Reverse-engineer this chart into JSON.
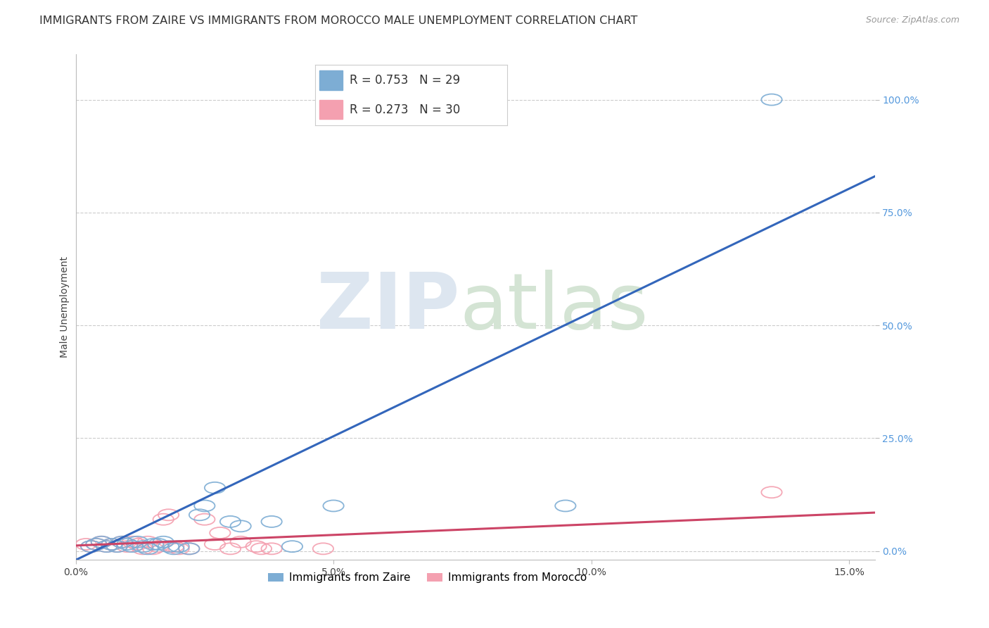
{
  "title": "IMMIGRANTS FROM ZAIRE VS IMMIGRANTS FROM MOROCCO MALE UNEMPLOYMENT CORRELATION CHART",
  "source": "Source: ZipAtlas.com",
  "ylabel": "Male Unemployment",
  "xlim": [
    0.0,
    0.155
  ],
  "ylim": [
    -0.02,
    1.1
  ],
  "yticks": [
    0.0,
    0.25,
    0.5,
    0.75,
    1.0
  ],
  "ytick_labels": [
    "0.0%",
    "25.0%",
    "50.0%",
    "75.0%",
    "100.0%"
  ],
  "xticks": [
    0.0,
    0.05,
    0.1,
    0.15
  ],
  "xtick_labels": [
    "0.0%",
    "5.0%",
    "10.0%",
    "15.0%"
  ],
  "legend_zaire_R": "0.753",
  "legend_zaire_N": "29",
  "legend_morocco_R": "0.273",
  "legend_morocco_N": "30",
  "color_zaire": "#7dadd4",
  "color_morocco": "#f4a0b0",
  "color_trendline_zaire": "#3366bb",
  "color_trendline_morocco": "#cc4466",
  "zaire_scatter_x": [
    0.003,
    0.004,
    0.005,
    0.006,
    0.007,
    0.008,
    0.009,
    0.01,
    0.011,
    0.012,
    0.013,
    0.014,
    0.015,
    0.016,
    0.017,
    0.018,
    0.019,
    0.02,
    0.022,
    0.024,
    0.025,
    0.027,
    0.03,
    0.032,
    0.038,
    0.042,
    0.05,
    0.095,
    0.135
  ],
  "zaire_scatter_y": [
    0.01,
    0.015,
    0.02,
    0.01,
    0.015,
    0.01,
    0.02,
    0.015,
    0.01,
    0.02,
    0.01,
    0.005,
    0.015,
    0.015,
    0.02,
    0.01,
    0.005,
    0.01,
    0.005,
    0.08,
    0.1,
    0.14,
    0.065,
    0.055,
    0.065,
    0.01,
    0.1,
    0.1,
    1.0
  ],
  "morocco_scatter_x": [
    0.002,
    0.003,
    0.004,
    0.005,
    0.006,
    0.007,
    0.008,
    0.009,
    0.01,
    0.011,
    0.012,
    0.013,
    0.014,
    0.015,
    0.016,
    0.017,
    0.018,
    0.019,
    0.02,
    0.022,
    0.025,
    0.027,
    0.028,
    0.03,
    0.032,
    0.035,
    0.036,
    0.038,
    0.048,
    0.135
  ],
  "morocco_scatter_y": [
    0.015,
    0.01,
    0.015,
    0.02,
    0.01,
    0.015,
    0.01,
    0.02,
    0.01,
    0.02,
    0.015,
    0.005,
    0.02,
    0.005,
    0.01,
    0.07,
    0.08,
    0.01,
    0.005,
    0.005,
    0.07,
    0.015,
    0.04,
    0.005,
    0.02,
    0.01,
    0.005,
    0.005,
    0.005,
    0.13
  ],
  "zaire_trend_x": [
    0.0,
    0.155
  ],
  "zaire_trend_y": [
    -0.02,
    0.83
  ],
  "morocco_trend_x": [
    0.0,
    0.155
  ],
  "morocco_trend_y": [
    0.012,
    0.085
  ],
  "grid_color": "#cccccc",
  "title_fontsize": 11.5,
  "axis_label_fontsize": 10,
  "tick_label_fontsize": 10,
  "legend_fontsize": 13,
  "right_tick_color": "#5599dd",
  "watermark_color_zip": "#dde6f0",
  "watermark_color_atlas": "#d4e4d4"
}
